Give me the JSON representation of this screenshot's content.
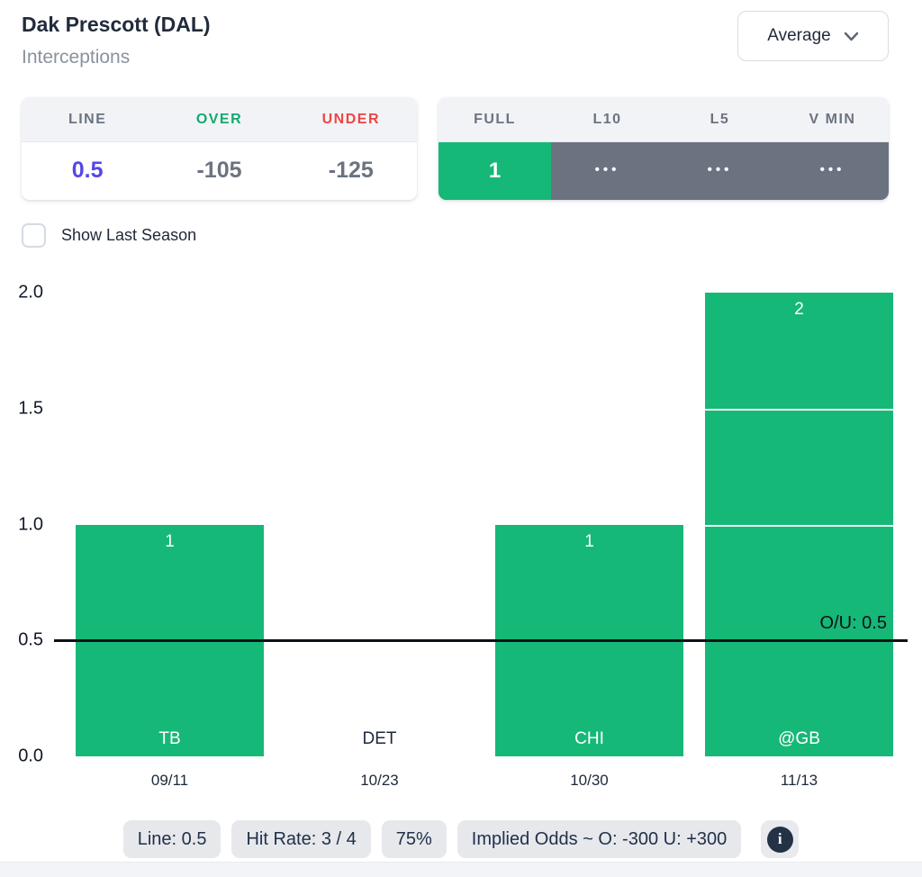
{
  "theme": {
    "green": "#16b877",
    "over_green": "#12a96e",
    "under_red": "#ee4543",
    "line_indigo": "#5348e8",
    "slate": "#6b7381",
    "dark": "#212b3b",
    "muted": "#8a929e"
  },
  "header": {
    "title": "Dak Prescott (DAL)",
    "subtitle": "Interceptions"
  },
  "view_dropdown": {
    "selected": "Average"
  },
  "odds_card": {
    "headers": {
      "line": "LINE",
      "over": "OVER",
      "under": "UNDER"
    },
    "values": {
      "line": "0.5",
      "over": "-105",
      "under": "-125"
    }
  },
  "splits": {
    "tabs": [
      {
        "label": "FULL",
        "value": "1",
        "active": true
      },
      {
        "label": "L10",
        "value": "•••",
        "active": false
      },
      {
        "label": "L5",
        "value": "•••",
        "active": false
      },
      {
        "label": "V MIN",
        "value": "•••",
        "active": false
      }
    ]
  },
  "controls": {
    "show_last_season_label": "Show Last Season",
    "checked": false
  },
  "chart_data": {
    "type": "bar",
    "title": "",
    "xlabel": "",
    "ylabel": "",
    "categories": [
      "TB",
      "DET",
      "CHI",
      "@GB"
    ],
    "dates": [
      "09/11",
      "10/23",
      "10/30",
      "11/13"
    ],
    "values": [
      1,
      0,
      1,
      2
    ],
    "ylim": [
      0,
      2
    ],
    "yticks": [
      0,
      0.5,
      1,
      1.5,
      2
    ],
    "grid": false,
    "legend": "none",
    "bar_color": "#16b877",
    "reference_line": {
      "value": 0.5,
      "label": "O/U: 0.5",
      "color": "#0d1117"
    }
  },
  "footer": {
    "badges": [
      {
        "label": "Line: 0.5"
      },
      {
        "label": "Hit Rate: 3 / 4"
      },
      {
        "label": "75%"
      },
      {
        "label": "Implied Odds ~ O: -300 U: +300"
      }
    ],
    "info_glyph": "i"
  }
}
